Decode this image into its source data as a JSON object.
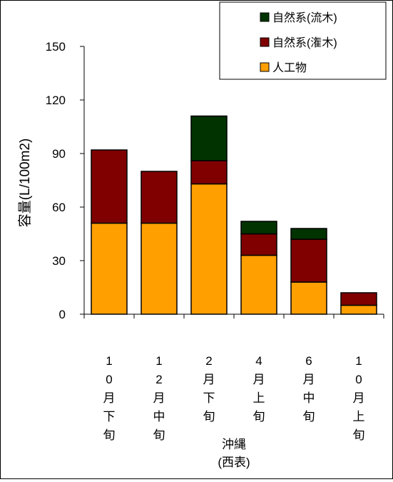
{
  "chart_data": {
    "type": "bar",
    "stacked": true,
    "categories": [
      "10月下旬",
      "12月中旬",
      "2月下旬",
      "4月上旬",
      "6月中旬",
      "10月上旬"
    ],
    "series": [
      {
        "name": "人工物",
        "color": "#ff9f00",
        "values": [
          51,
          51,
          73,
          33,
          18,
          5
        ]
      },
      {
        "name": "自然系(潅木)",
        "color": "#800000",
        "values": [
          41,
          29,
          13,
          12,
          24,
          7
        ]
      },
      {
        "name": "自然系(流木)",
        "color": "#003300",
        "values": [
          0,
          0,
          25,
          7,
          6,
          0
        ]
      }
    ],
    "ylabel": "容量(L/100m2)",
    "ylim": [
      0,
      150
    ],
    "yticks": [
      "0",
      "30",
      "60",
      "90",
      "120",
      "150"
    ],
    "group_label_line1": "沖縄",
    "group_label_line2": "(西表)",
    "grid": false,
    "legend_position": "top-right"
  }
}
